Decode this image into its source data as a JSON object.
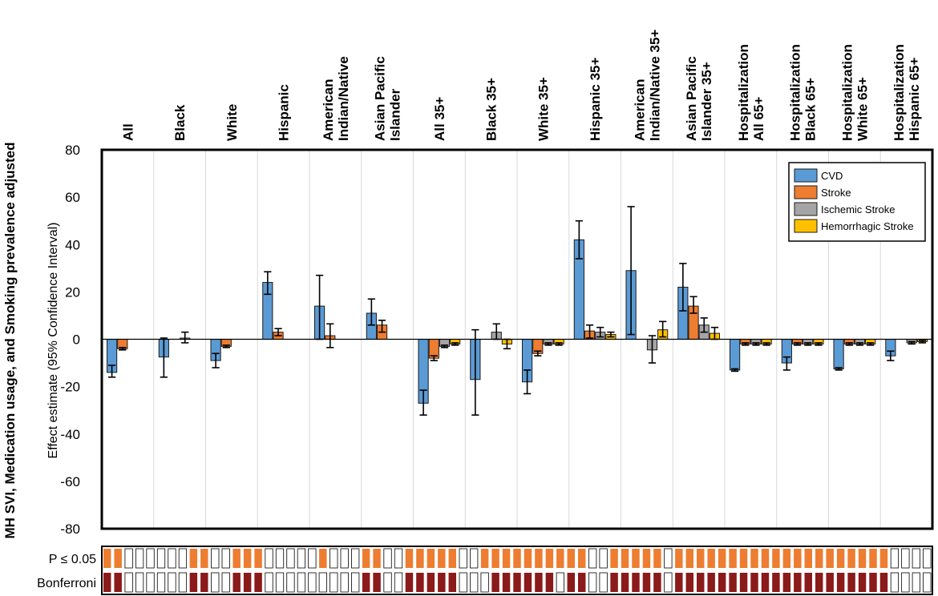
{
  "chart_data": {
    "type": "bar",
    "title": "MH SVI, Medication usage, and Smoking prevalence adjusted",
    "ylabel": "Effect estimate (95% Confidence Interval)",
    "ylim": [
      -80,
      80
    ],
    "yticks": [
      80,
      60,
      40,
      20,
      0,
      -20,
      -40,
      -60,
      -80
    ],
    "grid": true,
    "legend_position": "top-right",
    "categories": [
      [
        "All"
      ],
      [
        "Black"
      ],
      [
        "White"
      ],
      [
        "Hispanic"
      ],
      [
        "American",
        "Indian/Native"
      ],
      [
        "Asian Pacific",
        "Islander"
      ],
      [
        "All 35+"
      ],
      [
        "Black 35+"
      ],
      [
        "White 35+"
      ],
      [
        "Hispanic 35+"
      ],
      [
        "American",
        "Indian/Native 35+"
      ],
      [
        "Asian Pacific",
        "Islander 35+"
      ],
      [
        "Hospitalization",
        "All 65+"
      ],
      [
        "Hospitalization",
        "Black 65+"
      ],
      [
        "Hospitalization",
        "White 65+"
      ],
      [
        "Hospitalization",
        "Hispanic 65+"
      ]
    ],
    "series": [
      {
        "name": "CVD",
        "color": "#5b9bd5",
        "values": [
          -14,
          -7.5,
          -9,
          24,
          14,
          11,
          -27,
          -17,
          -18,
          42,
          29,
          22,
          -13,
          -10,
          -12.5,
          -7
        ],
        "lower": [
          -16,
          -16,
          -12,
          19,
          0,
          6,
          -32,
          -32,
          -23,
          34,
          2,
          12,
          -13.5,
          -13,
          -13,
          -9
        ],
        "upper": [
          -11,
          0.5,
          -6,
          28.5,
          27,
          17,
          -21.5,
          4,
          -13,
          50,
          56,
          32,
          -12.5,
          -7.5,
          -12,
          -5
        ]
      },
      {
        "name": "Stroke",
        "color": "#ed7d31",
        "values": [
          -4,
          null,
          -3,
          3,
          1.5,
          6,
          -8,
          null,
          -6,
          3.5,
          null,
          14,
          -2,
          -2,
          -2,
          null
        ],
        "lower": [
          -4.5,
          null,
          -3.5,
          1.5,
          -3.5,
          3,
          -9,
          null,
          -7,
          0.5,
          null,
          11,
          -2.5,
          -2.5,
          -2.5,
          null
        ],
        "upper": [
          -3.5,
          null,
          -2.5,
          4.5,
          6.5,
          8,
          -7,
          null,
          -5,
          6,
          null,
          18,
          -1.5,
          -1.5,
          -1.5,
          null
        ]
      },
      {
        "name": "Ischemic Stroke",
        "color": "#a5a5a5",
        "values": [
          null,
          0.5,
          null,
          null,
          null,
          null,
          -3,
          3,
          -2,
          3,
          -4.5,
          6,
          -2,
          -2,
          -2,
          -1.5
        ],
        "lower": [
          null,
          -1.5,
          null,
          null,
          null,
          null,
          -3.5,
          0,
          -2.5,
          1,
          -10,
          3,
          -2.5,
          -2.5,
          -2.5,
          -2
        ],
        "upper": [
          null,
          3,
          null,
          null,
          null,
          null,
          -2.5,
          6.5,
          -1.5,
          5,
          1.5,
          9,
          -1.5,
          -1.5,
          -1.5,
          -1
        ]
      },
      {
        "name": "Hemorrhagic Stroke",
        "color": "#ffc000",
        "values": [
          null,
          null,
          null,
          null,
          null,
          null,
          -2,
          -2,
          -2,
          2,
          4,
          2.5,
          -2,
          -2,
          -2,
          -1
        ],
        "lower": [
          null,
          null,
          null,
          null,
          null,
          null,
          -2.5,
          -4,
          -2.5,
          1,
          1,
          0,
          -2.5,
          -2.5,
          -2.5,
          -1.5
        ],
        "upper": [
          null,
          null,
          null,
          null,
          null,
          null,
          -1.5,
          0,
          -1.5,
          3,
          7.5,
          5,
          -1.5,
          -1.5,
          -1.5,
          -0.5
        ]
      }
    ],
    "significance": {
      "rows": [
        {
          "label": "P ≤ 0.05",
          "color": "#ed7d31",
          "flags": [
            1,
            1,
            0,
            0,
            0,
            0,
            0,
            0,
            1,
            1,
            0,
            0,
            1,
            1,
            1,
            0,
            0,
            0,
            0,
            0,
            1,
            0,
            0,
            0,
            1,
            1,
            0,
            0,
            1,
            1,
            1,
            1,
            1,
            0,
            0,
            1,
            1,
            1,
            1,
            1,
            1,
            1,
            1,
            1,
            1,
            0,
            0,
            1,
            1,
            1,
            1,
            1,
            0,
            1,
            1,
            1,
            1,
            1,
            1,
            1,
            1,
            1,
            1,
            1,
            1,
            1,
            1,
            1,
            1,
            1,
            1,
            1,
            1,
            0,
            0,
            0,
            0
          ]
        },
        {
          "label": "Bonferroni",
          "color": "#8b1a1a",
          "flags": [
            1,
            1,
            0,
            0,
            0,
            0,
            0,
            0,
            1,
            1,
            0,
            0,
            1,
            1,
            1,
            0,
            0,
            0,
            0,
            0,
            0,
            0,
            0,
            0,
            1,
            1,
            0,
            0,
            1,
            1,
            1,
            1,
            1,
            0,
            0,
            0,
            1,
            1,
            1,
            1,
            1,
            1,
            0,
            1,
            1,
            0,
            0,
            1,
            1,
            1,
            1,
            1,
            0,
            1,
            1,
            1,
            1,
            1,
            1,
            1,
            1,
            1,
            1,
            1,
            1,
            1,
            1,
            1,
            1,
            1,
            1,
            1,
            1,
            0,
            0,
            0,
            0
          ]
        }
      ]
    }
  }
}
